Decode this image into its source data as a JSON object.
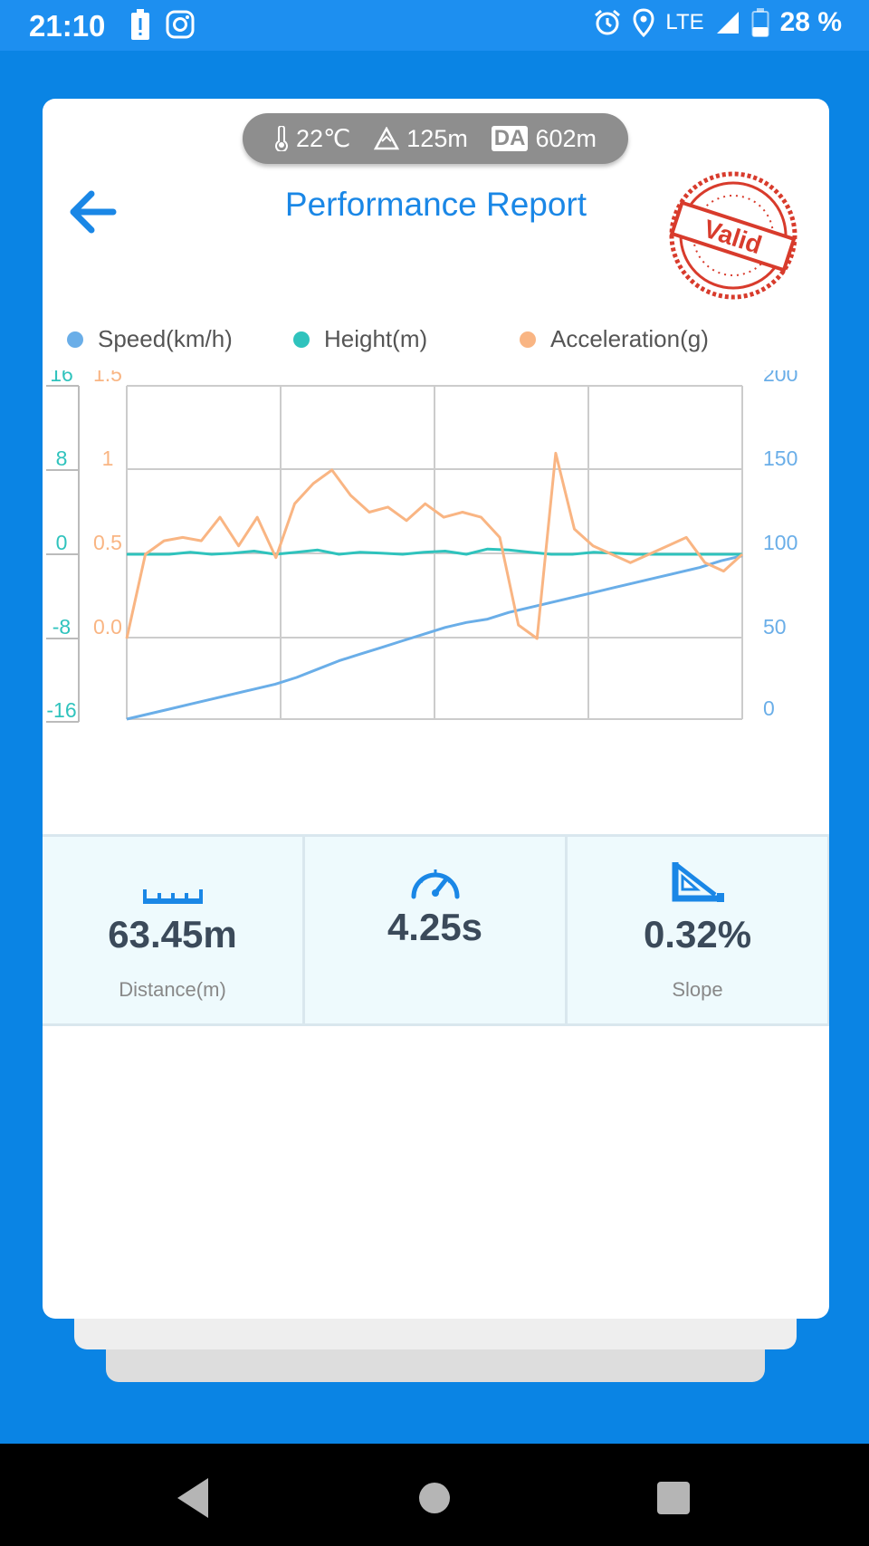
{
  "status_bar": {
    "time": "21:10",
    "network": "LTE",
    "battery": "28 %",
    "icons_left": [
      "battery-alert-icon",
      "instagram-icon"
    ],
    "icons_right": [
      "alarm-icon",
      "location-icon",
      "signal-icon",
      "battery-icon"
    ]
  },
  "environment": {
    "temperature": "22℃",
    "altitude": "125m",
    "da_label": "DA",
    "density_altitude": "602m"
  },
  "header": {
    "title": "Performance Report",
    "stamp_text": "Valid"
  },
  "colors": {
    "primary": "#1a87e6",
    "speed": "#6aaee8",
    "height": "#2fc3bd",
    "acceleration": "#f9b583",
    "stamp": "#d83b2c"
  },
  "legend": [
    {
      "label": "Speed(km/h)",
      "color": "#6aaee8"
    },
    {
      "label": "Height(m)",
      "color": "#2fc3bd"
    },
    {
      "label": "Acceleration(g)",
      "color": "#f9b583"
    }
  ],
  "chart_data": {
    "type": "line",
    "grid": true,
    "axes": {
      "height_ticks": [
        "16",
        "8",
        "0",
        "-8",
        "-16"
      ],
      "accel_ticks": [
        "1.5",
        "1",
        "0.5",
        "0.0"
      ],
      "speed_ticks": [
        "200",
        "150",
        "100",
        "50",
        "0"
      ],
      "height_range": [
        -16,
        16
      ],
      "accel_range": [
        -0.5,
        1.5
      ],
      "speed_range": [
        0,
        200
      ]
    },
    "series": [
      {
        "name": "Speed(km/h)",
        "axis": "speed",
        "values": [
          0,
          3,
          6,
          9,
          12,
          15,
          18,
          21,
          25,
          30,
          35,
          39,
          43,
          47,
          51,
          55,
          58,
          60,
          64,
          67,
          70,
          73,
          76,
          79,
          82,
          85,
          88,
          91,
          95,
          98
        ]
      },
      {
        "name": "Height(m)",
        "axis": "height",
        "values": [
          0,
          0,
          0,
          0.2,
          0,
          0.1,
          0.3,
          0,
          0.2,
          0.4,
          0,
          0.2,
          0.1,
          0,
          0.2,
          0.3,
          0,
          0.5,
          0.4,
          0.2,
          0,
          0,
          0.2,
          0.1,
          0,
          0,
          0,
          0,
          0,
          0
        ]
      },
      {
        "name": "Acceleration(g)",
        "axis": "accel",
        "values": [
          0,
          0.5,
          0.58,
          0.6,
          0.58,
          0.72,
          0.55,
          0.72,
          0.48,
          0.8,
          0.92,
          1.0,
          0.85,
          0.75,
          0.78,
          0.7,
          0.8,
          0.72,
          0.75,
          0.72,
          0.6,
          0.08,
          0.0,
          1.1,
          0.65,
          0.55,
          0.5,
          0.45,
          0.5,
          0.55,
          0.6,
          0.45,
          0.4,
          0.5
        ]
      }
    ]
  },
  "stats": [
    {
      "icon": "ruler-icon",
      "value": "63.45m",
      "label": "Distance(m)"
    },
    {
      "icon": "speedometer-icon",
      "value": "4.25s",
      "label": ""
    },
    {
      "icon": "slope-icon",
      "value": "0.32%",
      "label": "Slope"
    }
  ],
  "nav": [
    "back-nav",
    "home-nav",
    "recents-nav"
  ]
}
